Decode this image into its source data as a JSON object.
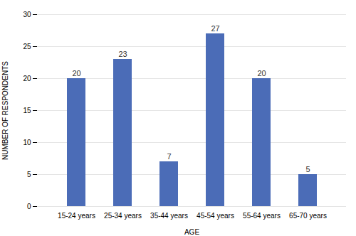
{
  "chart_data": {
    "type": "bar",
    "categories": [
      "15-24 years",
      "25-34 years",
      "35-44 years",
      "45-54 years",
      "55-64 years",
      "65-70 years"
    ],
    "values": [
      20,
      23,
      7,
      27,
      20,
      5
    ],
    "color": "#4B6CB7",
    "xlabel": "AGE",
    "ylabel": "NUMBER OF RESPONDENTS",
    "ylim": [
      0,
      30
    ],
    "yticks": [
      0,
      5,
      10,
      15,
      20,
      25,
      30
    ],
    "grid": true,
    "data_labels": true
  }
}
